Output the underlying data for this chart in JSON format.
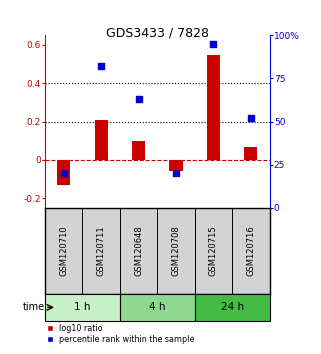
{
  "title": "GDS3433 / 7828",
  "samples": [
    "GSM120710",
    "GSM120711",
    "GSM120648",
    "GSM120708",
    "GSM120715",
    "GSM120716"
  ],
  "log10_ratio": [
    -0.13,
    0.21,
    0.1,
    -0.06,
    0.55,
    0.065
  ],
  "percentile_rank": [
    20,
    82,
    63,
    20,
    95,
    52
  ],
  "groups": [
    {
      "label": "1 h",
      "start": 0,
      "end": 2,
      "color": "#c8f0c8"
    },
    {
      "label": "4 h",
      "start": 2,
      "end": 4,
      "color": "#90d890"
    },
    {
      "label": "24 h",
      "start": 4,
      "end": 6,
      "color": "#44bb44"
    }
  ],
  "bar_color_red": "#cc0000",
  "dot_color_blue": "#0000cc",
  "hline_dashed_color": "#cc0000",
  "hline_dotted_color": "#000000",
  "left_axis_color": "#cc0000",
  "right_axis_color": "#0000cc",
  "ylim_left": [
    -0.25,
    0.65
  ],
  "ylim_right": [
    0,
    100
  ],
  "yticks_left": [
    -0.2,
    0.0,
    0.2,
    0.4,
    0.6
  ],
  "yticks_right": [
    0,
    25,
    50,
    75,
    100
  ],
  "ytick_labels_left": [
    "-0.2",
    "0",
    "0.2",
    "0.4",
    "0.6"
  ],
  "ytick_labels_right": [
    "0",
    "25",
    "50",
    "75",
    "100%"
  ],
  "hlines_dotted": [
    0.2,
    0.4
  ],
  "hline_zero": 0.0,
  "time_label": "time",
  "legend_red": "log10 ratio",
  "legend_blue": "percentile rank within the sample",
  "bg_color_plot": "#ffffff",
  "bg_color_samples": "#d3d3d3",
  "bar_width": 0.35,
  "dot_size": 22
}
